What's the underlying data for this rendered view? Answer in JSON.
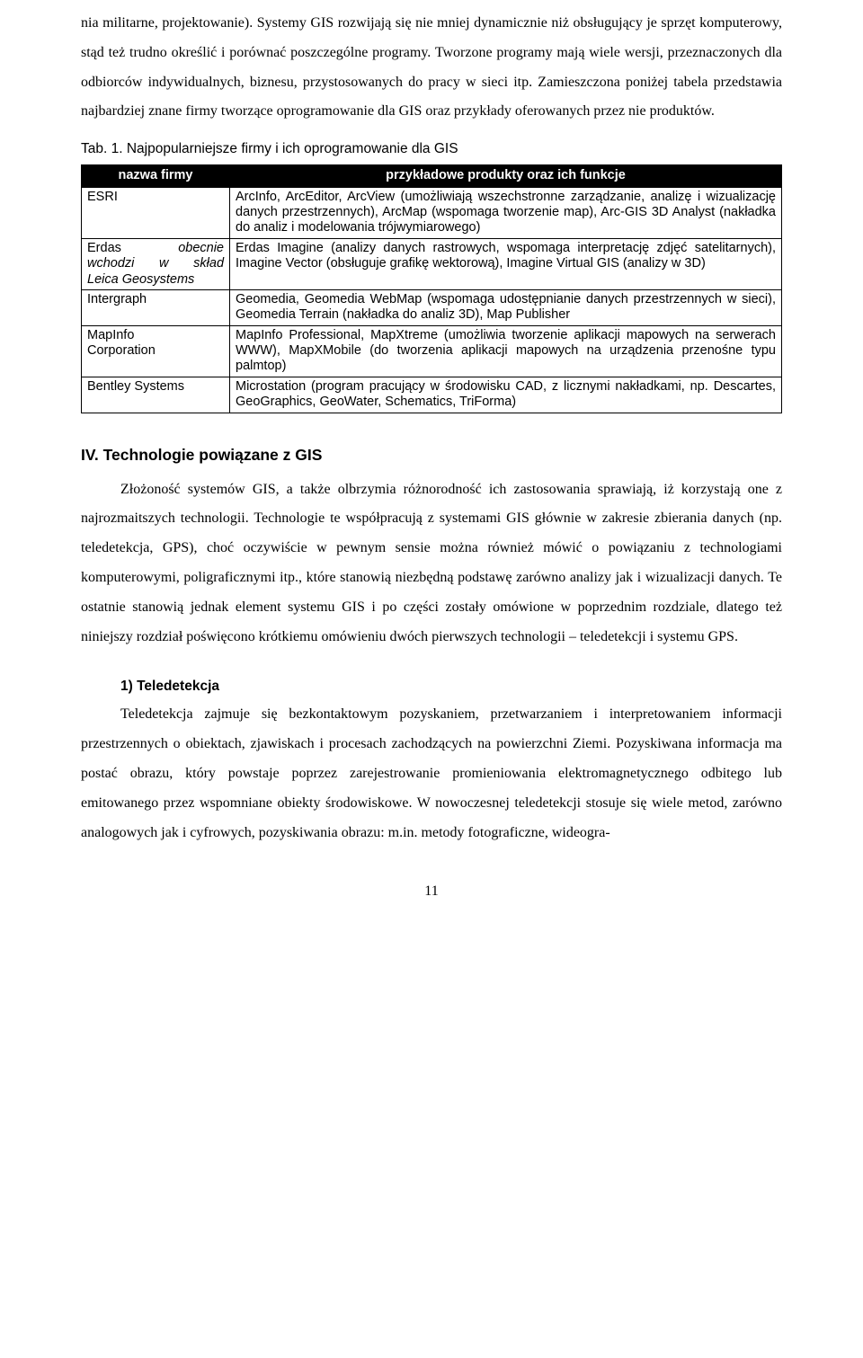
{
  "paragraphs": {
    "p1": "nia militarne, projektowanie). Systemy GIS rozwijają się nie mniej dynamicznie niż obsługujący je sprzęt komputerowy, stąd też trudno określić i porównać poszczególne programy. Tworzone programy mają wiele wersji, przeznaczonych dla odbiorców indywidualnych, biznesu, przystosowanych do pracy w sieci itp. Zamieszczona poniżej tabela przedstawia najbardziej znane firmy tworzące oprogramowanie dla GIS oraz przykłady oferowanych przez nie produktów.",
    "p2": "Złożoność systemów GIS, a także olbrzymia różnorodność ich zastosowania sprawiają, iż korzystają one z najrozmaitszych technologii. Technologie te współpracują z systemami GIS głównie w zakresie zbierania danych (np. teledetekcja, GPS), choć oczywiście w pewnym sensie można również mówić o powiązaniu z technologiami komputerowymi, poligraficznymi itp., które stanowią niezbędną podstawę zarówno analizy jak i wizualizacji danych. Te ostatnie stanowią jednak element systemu GIS i po części zostały omówione w poprzednim rozdziale, dlatego też niniejszy rozdział poświęcono krótkiemu omówieniu dwóch pierwszych technologii – teledetekcji i systemu GPS.",
    "p3": "Teledetekcja zajmuje się bezkontaktowym pozyskaniem, przetwarzaniem i interpretowaniem informacji przestrzennych o obiektach, zjawiskach i procesach zachodzących na powierzchni Ziemi. Pozyskiwana informacja ma postać obrazu, który powstaje poprzez zarejestrowanie promieniowania elektromagnetycznego odbitego lub emitowanego przez wspomniane obiekty środowiskowe. W nowoczesnej teledetekcji stosuje się wiele metod, zarówno analogowych jak i cyfrowych, pozyskiwania obrazu: m.in. metody fotograficzne, wideogra-"
  },
  "table": {
    "caption": "Tab. 1. Najpopularniejsze firmy i ich oprogramowanie dla GIS",
    "headers": {
      "c1": "nazwa firmy",
      "c2": "przykładowe produkty oraz ich funkcje"
    },
    "rows": [
      {
        "firm_html": "ESRI",
        "desc": "ArcInfo, ArcEditor, ArcView (umożliwiają wszechstronne zarządzanie, analizę i wizualizację danych przestrzennych), ArcMap (wspomaga tworzenie map), Arc-GIS 3D Analyst (nakładka do analiz i modelowania trójwymiarowego)"
      },
      {
        "firm_a": "Erdas",
        "firm_b": "obecnie",
        "firm_c": "wchodzi",
        "firm_d": "w",
        "firm_e": "skład",
        "firm_f": "Leica Geosystems",
        "desc": "Erdas Imagine (analizy danych rastrowych, wspomaga interpretację zdjęć satelitarnych), Imagine Vector (obsługuje grafikę wektorową), Imagine Virtual GIS (analizy w 3D)"
      },
      {
        "firm_html": "Intergraph",
        "desc": "Geomedia, Geomedia WebMap (wspomaga udostępnianie danych przestrzennych w sieci), Geomedia Terrain (nakładka do analiz 3D), Map Publisher"
      },
      {
        "firm_line1": "MapInfo",
        "firm_line2": "Corporation",
        "desc": "MapInfo Professional, MapXtreme (umożliwia tworzenie aplikacji mapowych na serwerach WWW), MapXMobile (do tworzenia aplikacji mapowych na urządzenia przenośne typu palmtop)"
      },
      {
        "firm_html": "Bentley Systems",
        "desc": "Microstation (program pracujący w środowisku CAD, z licznymi nakładkami, np. Descartes, GeoGraphics, GeoWater, Schematics, TriForma)"
      }
    ]
  },
  "headings": {
    "h_iv": "IV. Technologie powiązane z GIS",
    "h_1": "1) Teledetekcja"
  },
  "page_number": "11",
  "colors": {
    "table_header_bg": "#000000",
    "table_header_fg": "#ffffff",
    "border": "#000000",
    "text": "#000000",
    "background": "#ffffff"
  }
}
